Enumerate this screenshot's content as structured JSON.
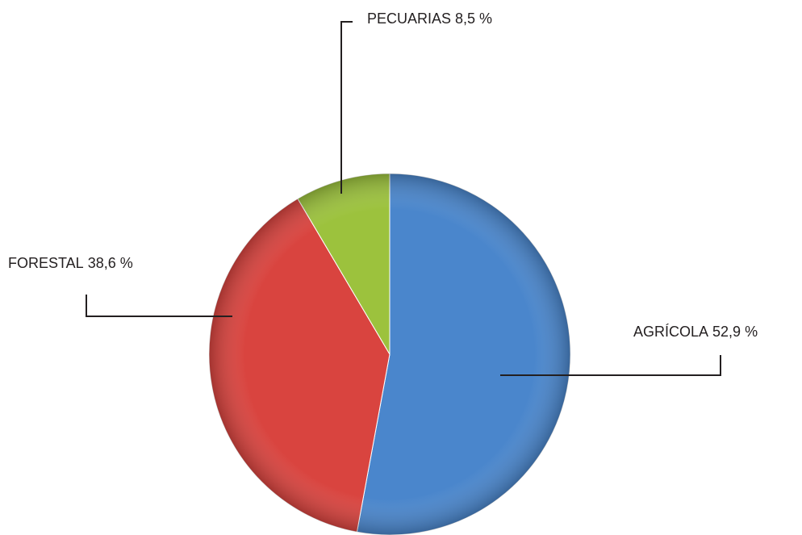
{
  "chart_data": {
    "type": "pie",
    "categories": [
      "AGRÍCOLA",
      "FORESTAL",
      "PECUARIAS"
    ],
    "values": [
      52.9,
      38.6,
      8.5
    ],
    "value_labels": [
      "52,9 %",
      "38,6 %",
      "8,5 %"
    ],
    "colors": [
      "#4a86cc",
      "#d9443f",
      "#9cc23d"
    ]
  }
}
